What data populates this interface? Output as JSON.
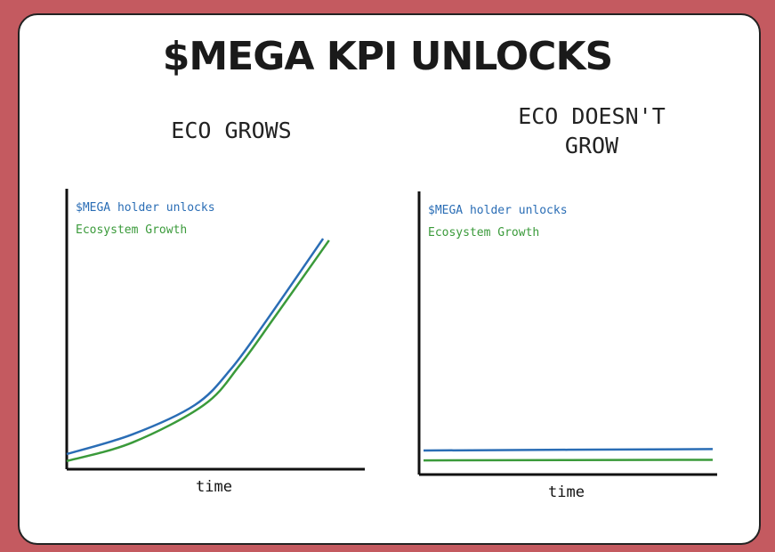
{
  "title": "$MEGA KPI UNLOCKS",
  "chart_data": [
    {
      "type": "line",
      "title": "ECO GROWS",
      "xlabel": "time",
      "xlim": [
        0,
        100
      ],
      "ylim": [
        0,
        100
      ],
      "series": [
        {
          "name": "$MEGA holder unlocks",
          "color": "#2a6db5",
          "x": [
            0,
            22,
            43,
            55,
            67,
            86
          ],
          "values": [
            5.4,
            12.4,
            22.9,
            35.6,
            53,
            82.2
          ]
        },
        {
          "name": "Ecosystem Growth",
          "color": "#3a9a3a",
          "x": [
            0,
            22,
            46,
            58,
            70,
            88
          ],
          "values": [
            2.9,
            9.5,
            22.9,
            37,
            54.6,
            81.6
          ]
        }
      ]
    },
    {
      "type": "line",
      "title": "ECO DOESN'T GROW",
      "xlabel": "time",
      "xlim": [
        0,
        100
      ],
      "ylim": [
        0,
        100
      ],
      "series": [
        {
          "name": "$MEGA holder unlocks",
          "color": "#2a6db5",
          "x": [
            1.5,
            98.5
          ],
          "values": [
            8.5,
            9
          ]
        },
        {
          "name": "Ecosystem Growth",
          "color": "#3a9a3a",
          "x": [
            1.5,
            98.5
          ],
          "values": [
            5,
            5.2
          ]
        }
      ]
    }
  ]
}
